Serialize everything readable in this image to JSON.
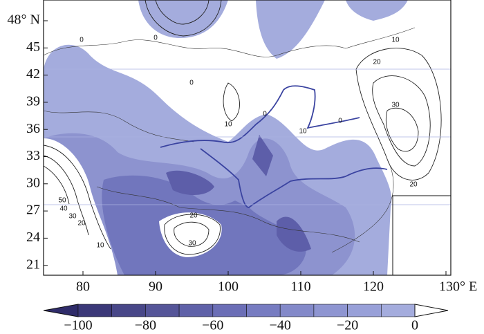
{
  "map": {
    "lat_labels": [
      "48° N",
      "45",
      "42",
      "39",
      "36",
      "33",
      "30",
      "27",
      "24",
      "21"
    ],
    "lon_labels": [
      "80",
      "90",
      "100",
      "110",
      "120",
      "130° E"
    ],
    "contour_labels": [
      "0",
      "0",
      "10",
      "20",
      "0",
      "30",
      "10",
      "0",
      "10",
      "0",
      "20",
      "50",
      "40",
      "30",
      "20",
      "10",
      "20",
      "30"
    ]
  },
  "colorbar": {
    "labels": [
      "−100",
      "−80",
      "−60",
      "−40",
      "−20",
      "0"
    ]
  }
}
